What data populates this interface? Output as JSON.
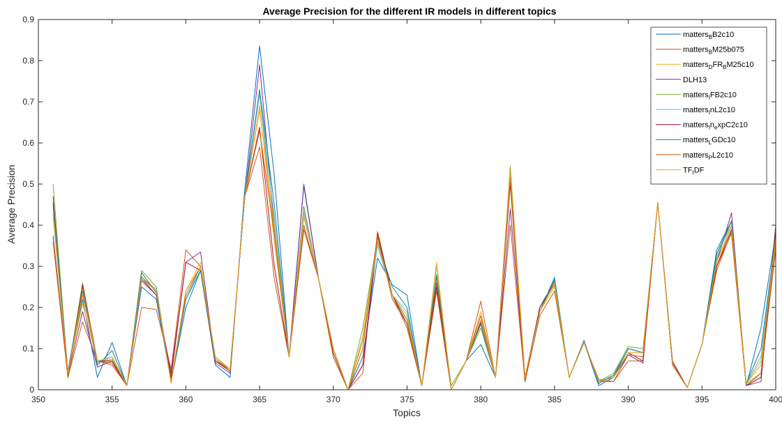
{
  "chart_data": {
    "type": "line",
    "title": "Average Precision for the different IR models in different topics",
    "xlabel": "Topics",
    "ylabel": "Average Precision",
    "xlim": [
      350,
      400
    ],
    "ylim": [
      0,
      0.9
    ],
    "xticks": [
      350,
      355,
      360,
      365,
      370,
      375,
      380,
      385,
      390,
      395,
      400
    ],
    "yticks": [
      0,
      0.1,
      0.2,
      0.3,
      0.4,
      0.5,
      0.6,
      0.7,
      0.8,
      0.9
    ],
    "legend_position": "top-right",
    "x": [
      351,
      352,
      353,
      354,
      355,
      356,
      357,
      358,
      359,
      360,
      361,
      362,
      363,
      364,
      365,
      366,
      367,
      368,
      369,
      370,
      371,
      372,
      373,
      374,
      375,
      376,
      377,
      378,
      379,
      380,
      381,
      382,
      383,
      384,
      385,
      386,
      387,
      388,
      389,
      390,
      391,
      392,
      393,
      394,
      395,
      396,
      397,
      398,
      399,
      400
    ],
    "series": [
      {
        "name": "matters_B B2c10",
        "name_parts": [
          [
            "matters",
            ""
          ],
          [
            "B",
            "sub"
          ],
          [
            "B2c10",
            ""
          ]
        ],
        "color": "#0072BD",
        "values": [
          0.45,
          0.04,
          0.22,
          0.03,
          0.115,
          0.01,
          0.25,
          0.22,
          0.02,
          0.2,
          0.29,
          0.06,
          0.03,
          0.49,
          0.836,
          0.52,
          0.08,
          0.5,
          0.27,
          0.08,
          0.0,
          0.08,
          0.32,
          0.255,
          0.23,
          0.01,
          0.28,
          0.0,
          0.07,
          0.11,
          0.03,
          0.51,
          0.02,
          0.2,
          0.265,
          0.03,
          0.115,
          0.01,
          0.03,
          0.1,
          0.09,
          0.455,
          0.07,
          0.005,
          0.11,
          0.34,
          0.41,
          0.01,
          0.15,
          0.38
        ]
      },
      {
        "name": "matters_B M25b075",
        "name_parts": [
          [
            "matters",
            ""
          ],
          [
            "B",
            "sub"
          ],
          [
            "M25b075",
            ""
          ]
        ],
        "color": "#D95319",
        "values": [
          0.36,
          0.03,
          0.165,
          0.07,
          0.06,
          0.01,
          0.2,
          0.195,
          0.05,
          0.34,
          0.3,
          0.07,
          0.05,
          0.47,
          0.59,
          0.27,
          0.08,
          0.4,
          0.27,
          0.08,
          0.0,
          0.04,
          0.385,
          0.23,
          0.15,
          0.01,
          0.24,
          0.0,
          0.07,
          0.215,
          0.03,
          0.4,
          0.02,
          0.2,
          0.255,
          0.03,
          0.115,
          0.02,
          0.02,
          0.07,
          0.07,
          0.455,
          0.07,
          0.005,
          0.11,
          0.3,
          0.38,
          0.01,
          0.03,
          0.36
        ]
      },
      {
        "name": "matters_D FR_B M25c10",
        "name_parts": [
          [
            "matters",
            ""
          ],
          [
            "D",
            "sub"
          ],
          [
            "FR",
            ""
          ],
          [
            "B",
            "sub"
          ],
          [
            "M25c10",
            ""
          ]
        ],
        "color": "#EDB120",
        "values": [
          0.44,
          0.04,
          0.21,
          0.07,
          0.08,
          0.01,
          0.27,
          0.24,
          0.02,
          0.24,
          0.31,
          0.075,
          0.05,
          0.47,
          0.69,
          0.36,
          0.08,
          0.42,
          0.27,
          0.1,
          0.0,
          0.13,
          0.37,
          0.23,
          0.17,
          0.01,
          0.31,
          0.0,
          0.07,
          0.19,
          0.03,
          0.545,
          0.03,
          0.19,
          0.25,
          0.03,
          0.115,
          0.02,
          0.03,
          0.09,
          0.09,
          0.455,
          0.06,
          0.005,
          0.11,
          0.3,
          0.4,
          0.015,
          0.07,
          0.37
        ]
      },
      {
        "name": "DLH13",
        "name_parts": [
          [
            "DLH13",
            ""
          ]
        ],
        "color": "#7E2F8E",
        "values": [
          0.375,
          0.035,
          0.19,
          0.055,
          0.07,
          0.01,
          0.265,
          0.23,
          0.04,
          0.31,
          0.335,
          0.065,
          0.04,
          0.47,
          0.79,
          0.4,
          0.08,
          0.495,
          0.27,
          0.09,
          0.0,
          0.06,
          0.36,
          0.23,
          0.17,
          0.01,
          0.26,
          0.0,
          0.07,
          0.165,
          0.03,
          0.44,
          0.03,
          0.2,
          0.26,
          0.03,
          0.115,
          0.02,
          0.03,
          0.085,
          0.065,
          0.455,
          0.065,
          0.005,
          0.11,
          0.31,
          0.43,
          0.01,
          0.02,
          0.4
        ]
      },
      {
        "name": "matters_I FB2c10",
        "name_parts": [
          [
            "matters",
            ""
          ],
          [
            "I",
            "sub"
          ],
          [
            "FB2c10",
            ""
          ]
        ],
        "color": "#77AC30",
        "values": [
          0.5,
          0.04,
          0.26,
          0.065,
          0.075,
          0.01,
          0.29,
          0.25,
          0.02,
          0.24,
          0.3,
          0.08,
          0.05,
          0.47,
          0.72,
          0.38,
          0.08,
          0.43,
          0.27,
          0.1,
          0.0,
          0.15,
          0.37,
          0.23,
          0.17,
          0.01,
          0.28,
          0.01,
          0.07,
          0.15,
          0.03,
          0.54,
          0.03,
          0.19,
          0.26,
          0.03,
          0.115,
          0.02,
          0.04,
          0.105,
          0.1,
          0.455,
          0.06,
          0.005,
          0.11,
          0.32,
          0.41,
          0.015,
          0.04,
          0.39
        ]
      },
      {
        "name": "matters_I nL2c10",
        "name_parts": [
          [
            "matters",
            ""
          ],
          [
            "I",
            "sub"
          ],
          [
            "nL2c10",
            ""
          ]
        ],
        "color": "#4DBEEE",
        "values": [
          0.42,
          0.04,
          0.23,
          0.065,
          0.08,
          0.01,
          0.27,
          0.245,
          0.02,
          0.22,
          0.3,
          0.07,
          0.045,
          0.47,
          0.72,
          0.42,
          0.08,
          0.43,
          0.27,
          0.1,
          0.0,
          0.12,
          0.35,
          0.23,
          0.19,
          0.01,
          0.3,
          0.0,
          0.07,
          0.16,
          0.03,
          0.53,
          0.03,
          0.19,
          0.275,
          0.03,
          0.115,
          0.02,
          0.035,
          0.1,
          0.09,
          0.455,
          0.06,
          0.005,
          0.11,
          0.33,
          0.4,
          0.015,
          0.08,
          0.37
        ]
      },
      {
        "name": "matters_I n_e xpC2c10",
        "name_parts": [
          [
            "matters",
            ""
          ],
          [
            "I",
            "sub"
          ],
          [
            "n",
            ""
          ],
          [
            "e",
            "sub"
          ],
          [
            "xpC2c10",
            ""
          ]
        ],
        "color": "#A2142F",
        "values": [
          0.47,
          0.03,
          0.255,
          0.07,
          0.07,
          0.01,
          0.27,
          0.23,
          0.03,
          0.31,
          0.29,
          0.07,
          0.045,
          0.47,
          0.638,
          0.3,
          0.08,
          0.39,
          0.27,
          0.09,
          0.0,
          0.06,
          0.38,
          0.23,
          0.16,
          0.01,
          0.25,
          0.0,
          0.07,
          0.16,
          0.03,
          0.5,
          0.02,
          0.2,
          0.26,
          0.03,
          0.115,
          0.02,
          0.03,
          0.09,
          0.07,
          0.455,
          0.06,
          0.005,
          0.11,
          0.3,
          0.39,
          0.01,
          0.03,
          0.39
        ]
      },
      {
        "name": "matters_L GDc10",
        "name_parts": [
          [
            "matters",
            ""
          ],
          [
            "L",
            "sub"
          ],
          [
            "GDc10",
            ""
          ]
        ],
        "color": "#1A7F8F",
        "values": [
          0.455,
          0.045,
          0.24,
          0.06,
          0.095,
          0.01,
          0.285,
          0.235,
          0.02,
          0.22,
          0.29,
          0.075,
          0.045,
          0.47,
          0.73,
          0.45,
          0.08,
          0.445,
          0.27,
          0.1,
          0.0,
          0.12,
          0.36,
          0.25,
          0.2,
          0.01,
          0.275,
          0.0,
          0.07,
          0.16,
          0.03,
          0.52,
          0.03,
          0.19,
          0.27,
          0.03,
          0.12,
          0.015,
          0.035,
          0.1,
          0.09,
          0.455,
          0.06,
          0.005,
          0.11,
          0.33,
          0.41,
          0.015,
          0.1,
          0.37
        ]
      },
      {
        "name": "matters_P L2c10",
        "name_parts": [
          [
            "matters",
            ""
          ],
          [
            "P",
            "sub"
          ],
          [
            "L2c10",
            ""
          ]
        ],
        "color": "#C85A0A",
        "values": [
          0.37,
          0.03,
          0.25,
          0.07,
          0.065,
          0.01,
          0.275,
          0.24,
          0.02,
          0.23,
          0.3,
          0.075,
          0.045,
          0.47,
          0.63,
          0.38,
          0.08,
          0.39,
          0.27,
          0.09,
          0.0,
          0.1,
          0.375,
          0.22,
          0.16,
          0.01,
          0.26,
          0.0,
          0.07,
          0.18,
          0.03,
          0.51,
          0.02,
          0.18,
          0.24,
          0.03,
          0.115,
          0.025,
          0.02,
          0.085,
          0.08,
          0.455,
          0.06,
          0.005,
          0.11,
          0.29,
          0.385,
          0.01,
          0.04,
          0.34
        ]
      },
      {
        "name": "TF_I DF",
        "name_parts": [
          [
            "TF",
            ""
          ],
          [
            "I",
            "sub"
          ],
          [
            "DF",
            ""
          ]
        ],
        "color": "#F0A31E",
        "values": [
          0.43,
          0.04,
          0.23,
          0.07,
          0.08,
          0.01,
          0.27,
          0.24,
          0.015,
          0.24,
          0.3,
          0.075,
          0.05,
          0.47,
          0.68,
          0.4,
          0.08,
          0.44,
          0.27,
          0.1,
          0.0,
          0.12,
          0.36,
          0.23,
          0.18,
          0.01,
          0.305,
          0.0,
          0.07,
          0.17,
          0.03,
          0.53,
          0.03,
          0.19,
          0.26,
          0.03,
          0.115,
          0.02,
          0.03,
          0.09,
          0.09,
          0.455,
          0.06,
          0.005,
          0.11,
          0.31,
          0.4,
          0.015,
          0.06,
          0.37
        ]
      }
    ]
  }
}
